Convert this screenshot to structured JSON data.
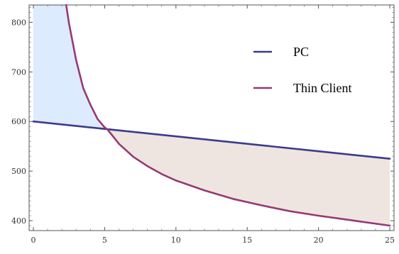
{
  "chart_data": {
    "type": "line",
    "xlim": [
      0,
      25
    ],
    "ylim": [
      380,
      835
    ],
    "x_ticks": [
      0,
      5,
      10,
      15,
      20,
      25
    ],
    "y_ticks": [
      400,
      500,
      600,
      700,
      800
    ],
    "grid": false,
    "frame": true,
    "legend_position": "upper-right",
    "series": [
      {
        "name": "PC",
        "color": "#3b3b8f",
        "x": [
          0,
          5,
          10,
          15,
          20,
          25
        ],
        "y": [
          600,
          585,
          570,
          555,
          540,
          525
        ]
      },
      {
        "name": "Thin Client",
        "color": "#953a73",
        "x": [
          2.3,
          2.5,
          3,
          3.5,
          4,
          4.5,
          5,
          5.2,
          6,
          7,
          8,
          9,
          10,
          12,
          14,
          16,
          18,
          20,
          22,
          25
        ],
        "y": [
          835,
          798,
          724,
          667,
          634,
          605,
          588,
          584,
          555,
          529,
          510,
          494,
          481,
          461,
          444,
          431,
          419,
          410,
          402,
          390
        ]
      }
    ],
    "shaded_regions": [
      {
        "between": [
          "Thin Client",
          "PC"
        ],
        "x_range": [
          0,
          5.2
        ],
        "color": "#dcebfd"
      },
      {
        "between": [
          "PC",
          "Thin Client"
        ],
        "x_range": [
          5.2,
          25
        ],
        "color": "#efe5e0"
      }
    ]
  }
}
